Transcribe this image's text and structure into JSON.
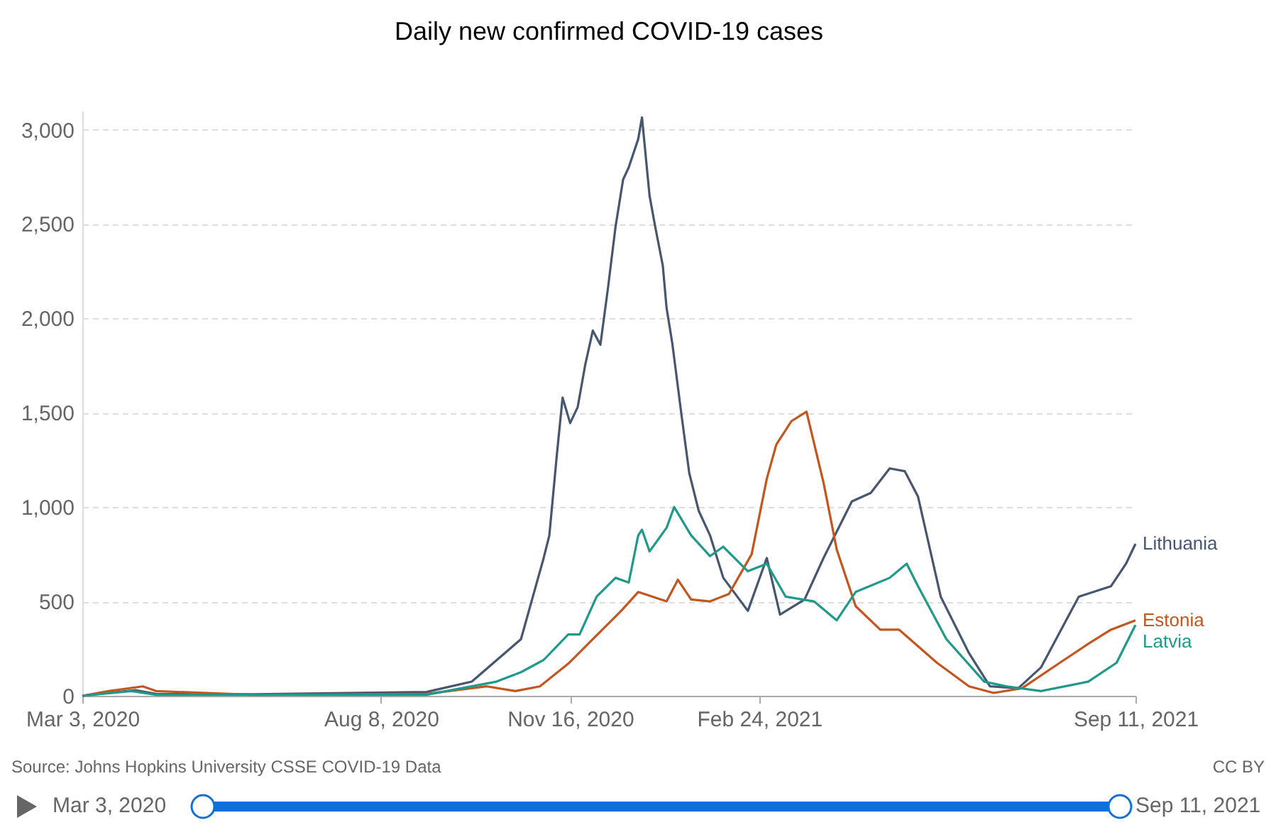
{
  "chart_data": {
    "type": "line",
    "title": "Daily new confirmed COVID-19 cases",
    "xlim": [
      "2020-03-03",
      "2021-09-11"
    ],
    "xticks": [
      {
        "value": "2020-03-03",
        "label": "Mar 3, 2020"
      },
      {
        "value": "2020-08-08",
        "label": "Aug 8, 2020"
      },
      {
        "value": "2020-11-16",
        "label": "Nov 16, 2020"
      },
      {
        "value": "2021-02-24",
        "label": "Feb 24, 2021"
      },
      {
        "value": "2021-09-11",
        "label": "Sep 11, 2021"
      }
    ],
    "ylim": [
      0,
      3100
    ],
    "yticks": [
      0,
      500,
      {
        "value": 1000,
        "label": "1,000"
      },
      {
        "value": 1500,
        "label": "1,500"
      },
      {
        "value": 2000,
        "label": "2,000"
      },
      {
        "value": 2500,
        "label": "2,500"
      },
      {
        "value": 3000,
        "label": "3,000"
      }
    ],
    "grid": "y",
    "line_style": "solid",
    "marker": "none",
    "annotations": [
      "Source: Johns Hopkins University CSSE COVID-19 Data",
      "CC BY",
      "Mar 3, 2020",
      "Sep 11, 2021"
    ],
    "series": [
      {
        "name": "Lithuania",
        "color": "#465670",
        "x": [
          "2020-03-03",
          "2020-03-31",
          "2020-04-11",
          "2020-06-01",
          "2020-09-01",
          "2020-09-25",
          "2020-10-21",
          "2020-11-02",
          "2020-11-05",
          "2020-11-09",
          "2020-11-12",
          "2020-11-16",
          "2020-11-20",
          "2020-11-24",
          "2020-11-28",
          "2020-12-02",
          "2020-12-06",
          "2020-12-10",
          "2020-12-14",
          "2020-12-17",
          "2020-12-22",
          "2020-12-24",
          "2020-12-28",
          "2020-12-31",
          "2021-01-04",
          "2021-01-06",
          "2021-01-09",
          "2021-01-14",
          "2021-01-18",
          "2021-01-23",
          "2021-01-29",
          "2021-02-05",
          "2021-02-18",
          "2021-02-28",
          "2021-03-07",
          "2021-03-20",
          "2021-03-30",
          "2021-04-14",
          "2021-04-24",
          "2021-05-04",
          "2021-05-12",
          "2021-05-19",
          "2021-05-31",
          "2021-06-15",
          "2021-06-26",
          "2021-07-11",
          "2021-07-23",
          "2021-08-04",
          "2021-08-12",
          "2021-08-29",
          "2021-09-06",
          "2021-09-11"
        ],
        "values": [
          0,
          30,
          10,
          8,
          20,
          75,
          300,
          730,
          850,
          1280,
          1580,
          1445,
          1530,
          1755,
          1935,
          1860,
          2160,
          2485,
          2735,
          2800,
          2950,
          3065,
          2650,
          2485,
          2280,
          2055,
          1870,
          1480,
          1180,
          980,
          850,
          625,
          450,
          730,
          430,
          510,
          730,
          1030,
          1075,
          1205,
          1190,
          1055,
          525,
          225,
          50,
          40,
          150,
          375,
          525,
          580,
          700,
          805
        ]
      },
      {
        "name": "Estonia",
        "color": "#c3561f",
        "x": [
          "2020-03-03",
          "2020-03-17",
          "2020-04-04",
          "2020-04-11",
          "2020-06-01",
          "2020-09-01",
          "2020-10-03",
          "2020-10-18",
          "2020-10-31",
          "2020-11-15",
          "2020-11-30",
          "2020-12-13",
          "2020-12-22",
          "2021-01-06",
          "2021-01-12",
          "2021-01-19",
          "2021-01-29",
          "2021-02-08",
          "2021-02-20",
          "2021-02-28",
          "2021-03-05",
          "2021-03-13",
          "2021-03-21",
          "2021-03-30",
          "2021-04-06",
          "2021-04-16",
          "2021-04-29",
          "2021-05-09",
          "2021-05-29",
          "2021-06-15",
          "2021-06-28",
          "2021-07-13",
          "2021-08-02",
          "2021-08-17",
          "2021-08-29",
          "2021-09-11"
        ],
        "values": [
          0,
          25,
          50,
          25,
          5,
          10,
          50,
          25,
          50,
          170,
          320,
          450,
          550,
          500,
          615,
          510,
          500,
          540,
          750,
          1150,
          1330,
          1455,
          1505,
          1130,
          775,
          475,
          350,
          350,
          175,
          50,
          15,
          40,
          175,
          275,
          350,
          400
        ]
      },
      {
        "name": "Latvia",
        "color": "#1f9a8a",
        "x": [
          "2020-03-03",
          "2020-03-29",
          "2020-04-11",
          "2020-06-01",
          "2020-09-01",
          "2020-10-08",
          "2020-10-21",
          "2020-11-02",
          "2020-11-15",
          "2020-11-21",
          "2020-11-30",
          "2020-12-10",
          "2020-12-17",
          "2020-12-22",
          "2020-12-24",
          "2020-12-28",
          "2021-01-06",
          "2021-01-10",
          "2021-01-19",
          "2021-01-29",
          "2021-02-05",
          "2021-02-18",
          "2021-02-28",
          "2021-03-10",
          "2021-03-25",
          "2021-04-06",
          "2021-04-16",
          "2021-05-04",
          "2021-05-13",
          "2021-05-19",
          "2021-06-03",
          "2021-06-23",
          "2021-07-05",
          "2021-07-23",
          "2021-08-17",
          "2021-09-01",
          "2021-09-11"
        ],
        "values": [
          0,
          25,
          5,
          5,
          5,
          75,
          125,
          190,
          325,
          325,
          525,
          625,
          600,
          850,
          880,
          765,
          890,
          1000,
          850,
          740,
          790,
          660,
          700,
          525,
          500,
          400,
          550,
          625,
          700,
          580,
          300,
          75,
          50,
          25,
          75,
          175,
          375
        ]
      }
    ]
  }
}
